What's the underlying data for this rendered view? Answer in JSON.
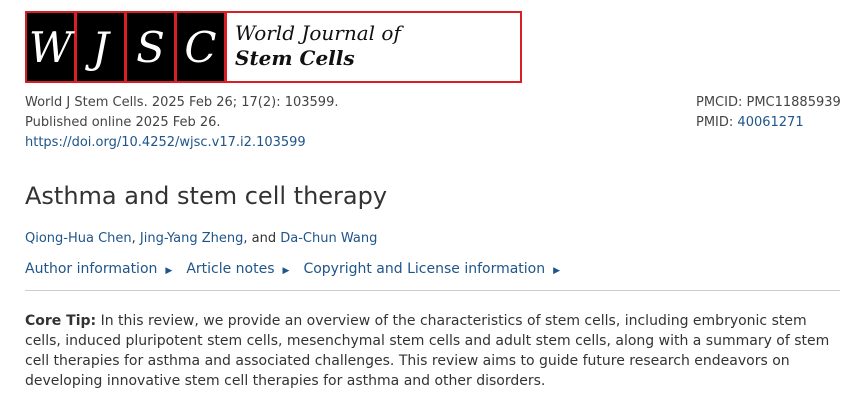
{
  "logo": {
    "letters": [
      "W",
      "J",
      "S",
      "C"
    ],
    "line1": "World Journal of",
    "line2": "Stem Cells"
  },
  "meta": {
    "citation": "World J Stem Cells. 2025 Feb 26; 17(2): 103599.",
    "published": "Published online 2025 Feb 26.",
    "doi": "https://doi.org/10.4252/wjsc.v17.i2.103599"
  },
  "ids": {
    "pmcid": "PMCID: PMC11885939",
    "pmid_label": "PMID: ",
    "pmid": "40061271"
  },
  "title": "Asthma and stem cell therapy",
  "authors": {
    "a1": "Qiong-Hua Chen",
    "sep1": ", ",
    "a2": "Jing-Yang Zheng",
    "sep2": ", and ",
    "a3": "Da-Chun Wang"
  },
  "links": [
    "Author information",
    "Article notes",
    "Copyright and License information"
  ],
  "core_tip": {
    "label": "Core Tip:",
    "text": " In this review, we provide an overview of the characteristics of stem cells, including embryonic stem cells, induced pluripotent stem cells, mesenchymal stem cells and adult stem cells, along with a summary of stem cell therapies for asthma and associated challenges. This review aims to guide future research endeavors on developing innovative stem cell therapies for asthma and other disorders."
  }
}
